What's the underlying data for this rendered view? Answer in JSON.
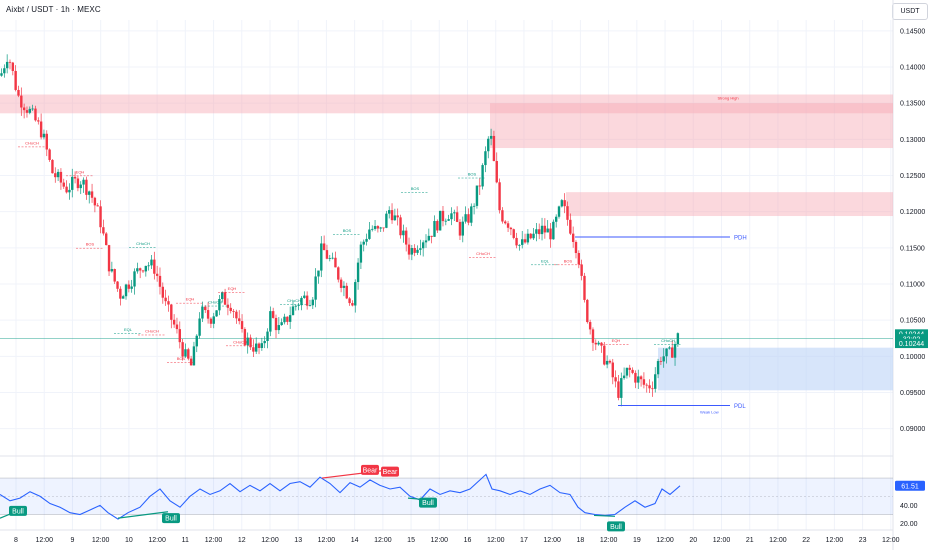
{
  "header": {
    "title": "Aixbt / USDT · 1h · MEXC",
    "currency": "USDT"
  },
  "colors": {
    "bull": "#089981",
    "bear": "#f23645",
    "zone_red": "#f7a8b3",
    "zone_blue": "#bcd4f6",
    "rsi": "#2962ff",
    "level": "#3d5afe"
  },
  "chart_data": [
    {
      "type": "candlestick",
      "title": "",
      "ylim": [
        0.0865,
        0.1465
      ],
      "y_ticks": [
        "0.14500",
        "0.14000",
        "0.13500",
        "0.13000",
        "0.12500",
        "0.12000",
        "0.11500",
        "0.11000",
        "0.10500",
        "0.10000",
        "0.09500",
        "0.09000"
      ],
      "x_ticks": [
        "8",
        "12:00",
        "9",
        "12:00",
        "10",
        "12:00",
        "11",
        "12:00",
        "12",
        "12:00",
        "13",
        "12:00",
        "14",
        "12:00",
        "15",
        "12:00",
        "16",
        "12:00",
        "17",
        "12:00",
        "18",
        "12:00",
        "19",
        "12:00",
        "20",
        "12:00",
        "21",
        "12:00",
        "22",
        "12:00",
        "23",
        "12:00"
      ],
      "close_path": [
        [
          0,
          0.1385
        ],
        [
          8,
          0.142
        ],
        [
          18,
          0.136
        ],
        [
          30,
          0.1338
        ],
        [
          42,
          0.131
        ],
        [
          52,
          0.1255
        ],
        [
          66,
          0.1232
        ],
        [
          80,
          0.1245
        ],
        [
          90,
          0.1228
        ],
        [
          100,
          0.119
        ],
        [
          110,
          0.112
        ],
        [
          120,
          0.1085
        ],
        [
          132,
          0.1108
        ],
        [
          145,
          0.113
        ],
        [
          155,
          0.1122
        ],
        [
          165,
          0.1072
        ],
        [
          175,
          0.104
        ],
        [
          185,
          0.1
        ],
        [
          192,
          0.0985
        ],
        [
          200,
          0.1062
        ],
        [
          210,
          0.1052
        ],
        [
          222,
          0.108
        ],
        [
          232,
          0.1072
        ],
        [
          242,
          0.1028
        ],
        [
          255,
          0.1012
        ],
        [
          262,
          0.1008
        ],
        [
          270,
          0.1058
        ],
        [
          280,
          0.1035
        ],
        [
          292,
          0.1065
        ],
        [
          302,
          0.108
        ],
        [
          312,
          0.1082
        ],
        [
          322,
          0.115
        ],
        [
          332,
          0.1128
        ],
        [
          342,
          0.1102
        ],
        [
          352,
          0.1075
        ],
        [
          360,
          0.1148
        ],
        [
          370,
          0.1178
        ],
        [
          380,
          0.117
        ],
        [
          390,
          0.1205
        ],
        [
          400,
          0.1175
        ],
        [
          410,
          0.1145
        ],
        [
          420,
          0.116
        ],
        [
          430,
          0.117
        ],
        [
          440,
          0.119
        ],
        [
          450,
          0.12
        ],
        [
          460,
          0.1175
        ],
        [
          470,
          0.1195
        ],
        [
          480,
          0.124
        ],
        [
          490,
          0.1312
        ],
        [
          494,
          0.1265
        ],
        [
          500,
          0.1198
        ],
        [
          510,
          0.1182
        ],
        [
          520,
          0.1152
        ],
        [
          532,
          0.1165
        ],
        [
          542,
          0.1175
        ],
        [
          552,
          0.117
        ],
        [
          562,
          0.121
        ],
        [
          570,
          0.118
        ],
        [
          578,
          0.1145
        ],
        [
          584,
          0.1075
        ],
        [
          590,
          0.104
        ],
        [
          598,
          0.1012
        ],
        [
          608,
          0.099
        ],
        [
          618,
          0.095
        ],
        [
          628,
          0.0982
        ],
        [
          638,
          0.0968
        ],
        [
          646,
          0.0958
        ],
        [
          652,
          0.0962
        ],
        [
          660,
          0.1
        ],
        [
          670,
          0.1002
        ],
        [
          680,
          0.1033
        ]
      ],
      "zones": [
        {
          "kind": "supply",
          "x0": 0,
          "x1": 895,
          "y0": 0.1336,
          "y1": 0.1362,
          "label": "Strong High"
        },
        {
          "kind": "supply",
          "x0": 490,
          "x1": 895,
          "y0": 0.1288,
          "y1": 0.135
        },
        {
          "kind": "supply",
          "x0": 566,
          "x1": 895,
          "y0": 0.1194,
          "y1": 0.1227
        },
        {
          "kind": "demand",
          "x0": 658,
          "x1": 895,
          "y0": 0.0953,
          "y1": 0.1012
        }
      ],
      "levels": [
        {
          "label": "PDH",
          "x0": 575,
          "x1": 730,
          "y": 0.1165
        },
        {
          "label": "PDL",
          "x0": 618,
          "x1": 730,
          "y": 0.0932,
          "sub": "Weak Low"
        }
      ],
      "structure_labels": [
        {
          "text": "CHoCH",
          "x": 32,
          "y": 0.1293,
          "color": "bear"
        },
        {
          "text": "EQH",
          "x": 80,
          "y": 0.1253,
          "color": "bear"
        },
        {
          "text": "BOS",
          "x": 90,
          "y": 0.1153,
          "color": "bear"
        },
        {
          "text": "CHoCH",
          "x": 143,
          "y": 0.1154,
          "color": "bull"
        },
        {
          "text": "EQL",
          "x": 128,
          "y": 0.1035,
          "color": "bull"
        },
        {
          "text": "CHoCH",
          "x": 152,
          "y": 0.1033,
          "color": "bear"
        },
        {
          "text": "EQH",
          "x": 190,
          "y": 0.1077,
          "color": "bear"
        },
        {
          "text": "BOS",
          "x": 181,
          "y": 0.0995,
          "color": "bear"
        },
        {
          "text": "CHoCH",
          "x": 215,
          "y": 0.1073,
          "color": "bull"
        },
        {
          "text": "EQH",
          "x": 232,
          "y": 0.1092,
          "color": "bear"
        },
        {
          "text": "CHoCH",
          "x": 240,
          "y": 0.1018,
          "color": "bear"
        },
        {
          "text": "CHoCH",
          "x": 294,
          "y": 0.1075,
          "color": "bull"
        },
        {
          "text": "BOS",
          "x": 347,
          "y": 0.1172,
          "color": "bull"
        },
        {
          "text": "BOS",
          "x": 415,
          "y": 0.123,
          "color": "bull"
        },
        {
          "text": "BOS",
          "x": 472,
          "y": 0.125,
          "color": "bull"
        },
        {
          "text": "CHoCH",
          "x": 483,
          "y": 0.114,
          "color": "bear"
        },
        {
          "text": "EQL",
          "x": 545,
          "y": 0.113,
          "color": "bull"
        },
        {
          "text": "BOS",
          "x": 568,
          "y": 0.113,
          "color": "bear"
        },
        {
          "text": "EQH",
          "x": 616,
          "y": 0.102,
          "color": "bear"
        },
        {
          "text": "CHoCH",
          "x": 668,
          "y": 0.102,
          "color": "bull"
        }
      ],
      "price_tags": [
        {
          "text": "0.10244",
          "y": 0.1031
        },
        {
          "text": "32:02",
          "y": 0.10244
        },
        {
          "text": "0.10244",
          "y": 0.10178
        }
      ],
      "current_price": 0.10244
    },
    {
      "type": "line",
      "title": "",
      "ylim": [
        13,
        92
      ],
      "y_ticks": [
        "40.00",
        "20.00"
      ],
      "bands": [
        30,
        70
      ],
      "midline": 50,
      "values": [
        [
          0,
          52
        ],
        [
          10,
          45
        ],
        [
          20,
          48
        ],
        [
          30,
          55
        ],
        [
          40,
          50
        ],
        [
          50,
          42
        ],
        [
          60,
          38
        ],
        [
          70,
          32
        ],
        [
          80,
          30
        ],
        [
          90,
          35
        ],
        [
          100,
          40
        ],
        [
          108,
          32
        ],
        [
          118,
          25
        ],
        [
          128,
          32
        ],
        [
          140,
          38
        ],
        [
          150,
          50
        ],
        [
          160,
          58
        ],
        [
          170,
          45
        ],
        [
          180,
          38
        ],
        [
          190,
          50
        ],
        [
          200,
          58
        ],
        [
          210,
          52
        ],
        [
          220,
          56
        ],
        [
          230,
          64
        ],
        [
          240,
          55
        ],
        [
          250,
          62
        ],
        [
          260,
          56
        ],
        [
          270,
          64
        ],
        [
          280,
          56
        ],
        [
          290,
          64
        ],
        [
          300,
          66
        ],
        [
          310,
          60
        ],
        [
          320,
          71
        ],
        [
          330,
          64
        ],
        [
          340,
          54
        ],
        [
          350,
          65
        ],
        [
          360,
          60
        ],
        [
          370,
          68
        ],
        [
          380,
          62
        ],
        [
          390,
          58
        ],
        [
          400,
          60
        ],
        [
          410,
          50
        ],
        [
          420,
          46
        ],
        [
          430,
          58
        ],
        [
          440,
          52
        ],
        [
          450,
          56
        ],
        [
          460,
          54
        ],
        [
          470,
          58
        ],
        [
          480,
          68
        ],
        [
          486,
          74
        ],
        [
          492,
          58
        ],
        [
          500,
          56
        ],
        [
          510,
          52
        ],
        [
          520,
          56
        ],
        [
          530,
          52
        ],
        [
          540,
          58
        ],
        [
          550,
          62
        ],
        [
          560,
          54
        ],
        [
          570,
          52
        ],
        [
          578,
          38
        ],
        [
          585,
          32
        ],
        [
          595,
          30
        ],
        [
          605,
          29
        ],
        [
          615,
          30
        ],
        [
          625,
          38
        ],
        [
          635,
          45
        ],
        [
          645,
          38
        ],
        [
          655,
          42
        ],
        [
          662,
          58
        ],
        [
          670,
          52
        ],
        [
          680,
          61.51
        ]
      ],
      "current": "61.51",
      "signals": [
        {
          "text": "Bull",
          "x": 18,
          "y": 34
        },
        {
          "text": "Bull",
          "x": 171,
          "y": 26
        },
        {
          "text": "Bear",
          "x": 370,
          "y": 79
        },
        {
          "text": "Bear",
          "x": 390,
          "y": 77
        },
        {
          "text": "Bull",
          "x": 428,
          "y": 43
        },
        {
          "text": "Bull",
          "x": 616,
          "y": 17
        }
      ],
      "divergences": [
        {
          "kind": "bull",
          "x0": 0,
          "y0": 26,
          "x1": 18,
          "y1": 34
        },
        {
          "kind": "bull",
          "x0": 118,
          "y0": 26,
          "x1": 168,
          "y1": 33
        },
        {
          "kind": "bear",
          "x0": 322,
          "y0": 70,
          "x1": 382,
          "y1": 78
        },
        {
          "kind": "bull",
          "x0": 408,
          "y0": 48,
          "x1": 428,
          "y1": 46
        },
        {
          "kind": "bull",
          "x0": 594,
          "y0": 29,
          "x1": 615,
          "y1": 28
        }
      ]
    }
  ]
}
